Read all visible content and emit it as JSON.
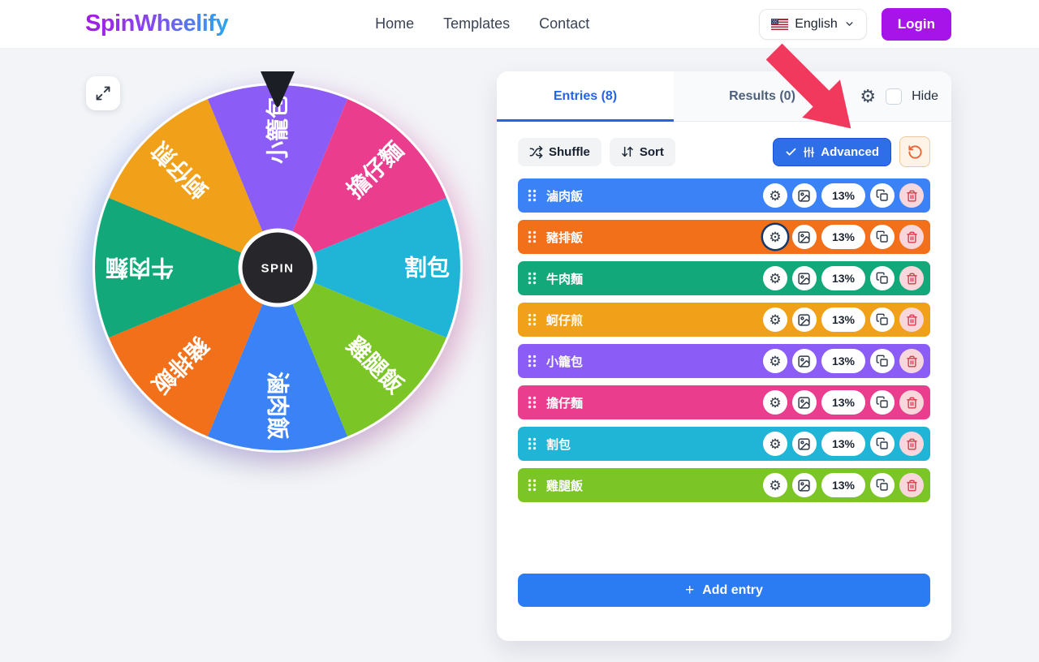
{
  "header": {
    "logo_part1": "Spin",
    "logo_part2": "Wheelify",
    "nav": {
      "home": "Home",
      "templates": "Templates",
      "contact": "Contact"
    },
    "language_label": "English",
    "login_label": "Login"
  },
  "wheel": {
    "spin_label": "SPIN"
  },
  "panel": {
    "tab_entries": "Entries (8)",
    "tab_results": "Results (0)",
    "hide_label": "Hide",
    "shuffle_label": "Shuffle",
    "sort_label": "Sort",
    "advanced_label": "Advanced",
    "add_entry_label": "Add entry",
    "add_entry_plus": "+"
  },
  "entries": [
    {
      "label": "滷肉飯",
      "color": "#3b82f6",
      "weight": "13%",
      "focused_gear": false
    },
    {
      "label": "豬排飯",
      "color": "#f3701b",
      "weight": "13%",
      "focused_gear": true
    },
    {
      "label": "牛肉麵",
      "color": "#12a87a",
      "weight": "13%",
      "focused_gear": false
    },
    {
      "label": "蚵仔煎",
      "color": "#f0a019",
      "weight": "13%",
      "focused_gear": false
    },
    {
      "label": "小籠包",
      "color": "#8b5cf6",
      "weight": "13%",
      "focused_gear": false
    },
    {
      "label": "擔仔麵",
      "color": "#ea3d8e",
      "weight": "13%",
      "focused_gear": false
    },
    {
      "label": "割包",
      "color": "#20b5d6",
      "weight": "13%",
      "focused_gear": false
    },
    {
      "label": "雞腿飯",
      "color": "#7cc527",
      "weight": "13%",
      "focused_gear": false
    }
  ],
  "colors": {
    "accent_blue": "#2563eb",
    "row_button_blue": "#2b7bf3",
    "login_purple": "#a614ea",
    "arrow_red": "#f1395e",
    "delete_red": "#d93a4a",
    "reset_orange": "#e4693d"
  }
}
